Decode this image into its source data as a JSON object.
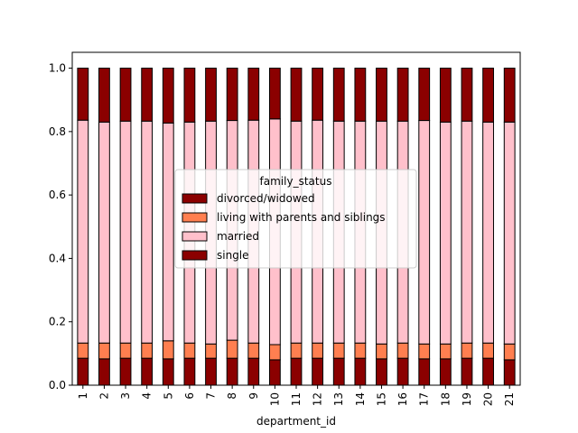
{
  "chart_data": {
    "type": "bar",
    "stacked": true,
    "title": "",
    "xlabel": "department_id",
    "ylabel": "",
    "ylim": [
      0,
      1.05
    ],
    "yticks": [
      "0.0",
      "0.2",
      "0.4",
      "0.6",
      "0.8",
      "1.0"
    ],
    "categories": [
      "1",
      "2",
      "3",
      "4",
      "5",
      "6",
      "7",
      "8",
      "9",
      "10",
      "11",
      "12",
      "13",
      "14",
      "15",
      "16",
      "17",
      "18",
      "19",
      "20",
      "21"
    ],
    "legend": {
      "title": "family_status",
      "placement": "center"
    },
    "series": [
      {
        "name": "divorced/widowed",
        "color": "#8b0000",
        "values": [
          0.085,
          0.083,
          0.085,
          0.085,
          0.083,
          0.085,
          0.085,
          0.085,
          0.085,
          0.08,
          0.085,
          0.085,
          0.085,
          0.085,
          0.083,
          0.085,
          0.083,
          0.083,
          0.085,
          0.085,
          0.08
        ]
      },
      {
        "name": "living with parents and siblings",
        "color": "#ff7f50",
        "values": [
          0.048,
          0.05,
          0.048,
          0.048,
          0.057,
          0.048,
          0.045,
          0.057,
          0.048,
          0.048,
          0.048,
          0.048,
          0.048,
          0.048,
          0.047,
          0.048,
          0.047,
          0.047,
          0.048,
          0.048,
          0.05
        ]
      },
      {
        "name": "married",
        "color": "#ffc0cb",
        "values": [
          0.703,
          0.697,
          0.7,
          0.7,
          0.687,
          0.697,
          0.703,
          0.693,
          0.703,
          0.712,
          0.7,
          0.703,
          0.7,
          0.7,
          0.703,
          0.7,
          0.705,
          0.7,
          0.7,
          0.697,
          0.7
        ]
      },
      {
        "name": "single",
        "color": "#8b0000",
        "values": [
          0.164,
          0.17,
          0.167,
          0.167,
          0.173,
          0.17,
          0.167,
          0.165,
          0.164,
          0.16,
          0.167,
          0.164,
          0.167,
          0.167,
          0.167,
          0.167,
          0.165,
          0.17,
          0.167,
          0.17,
          0.17
        ]
      }
    ]
  }
}
